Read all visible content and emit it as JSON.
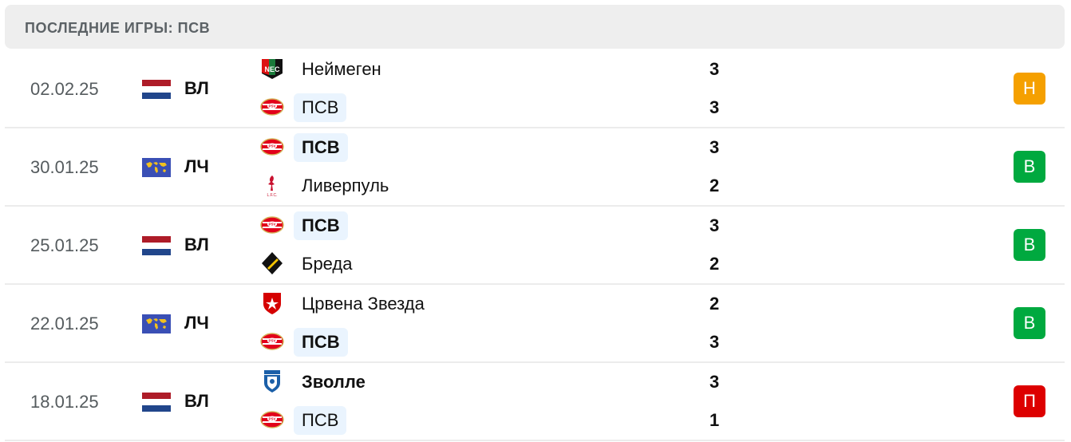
{
  "header": {
    "title": "ПОСЛЕДНИЕ ИГРЫ: ПСВ"
  },
  "colors": {
    "draw": "#f5a000",
    "win": "#00a93f",
    "loss": "#dd0000",
    "highlight": "#eaf4fe"
  },
  "matches": [
    {
      "date": "02.02.25",
      "competition": "ВЛ",
      "flag": "netherlands-flag",
      "home": {
        "name": "Неймеген",
        "logo": "nec-logo",
        "score": "3",
        "bold": false,
        "highlight": false
      },
      "away": {
        "name": "ПСВ",
        "logo": "psv-logo",
        "score": "3",
        "bold": false,
        "highlight": true
      },
      "result": "Н",
      "result_type": "draw"
    },
    {
      "date": "30.01.25",
      "competition": "ЛЧ",
      "flag": "world-flag",
      "home": {
        "name": "ПСВ",
        "logo": "psv-logo",
        "score": "3",
        "bold": true,
        "highlight": true
      },
      "away": {
        "name": "Ливерпуль",
        "logo": "liverpool-logo",
        "score": "2",
        "bold": false,
        "highlight": false
      },
      "result": "В",
      "result_type": "win"
    },
    {
      "date": "25.01.25",
      "competition": "ВЛ",
      "flag": "netherlands-flag",
      "home": {
        "name": "ПСВ",
        "logo": "psv-logo",
        "score": "3",
        "bold": true,
        "highlight": true
      },
      "away": {
        "name": "Бреда",
        "logo": "breda-logo",
        "score": "2",
        "bold": false,
        "highlight": false
      },
      "result": "В",
      "result_type": "win"
    },
    {
      "date": "22.01.25",
      "competition": "ЛЧ",
      "flag": "world-flag",
      "home": {
        "name": "Црвена Звезда",
        "logo": "crvena-zvezda-logo",
        "score": "2",
        "bold": false,
        "highlight": false
      },
      "away": {
        "name": "ПСВ",
        "logo": "psv-logo",
        "score": "3",
        "bold": true,
        "highlight": true
      },
      "result": "В",
      "result_type": "win"
    },
    {
      "date": "18.01.25",
      "competition": "ВЛ",
      "flag": "netherlands-flag",
      "home": {
        "name": "Зволле",
        "logo": "zwolle-logo",
        "score": "3",
        "bold": true,
        "highlight": false
      },
      "away": {
        "name": "ПСВ",
        "logo": "psv-logo",
        "score": "1",
        "bold": false,
        "highlight": true
      },
      "result": "П",
      "result_type": "loss"
    }
  ]
}
